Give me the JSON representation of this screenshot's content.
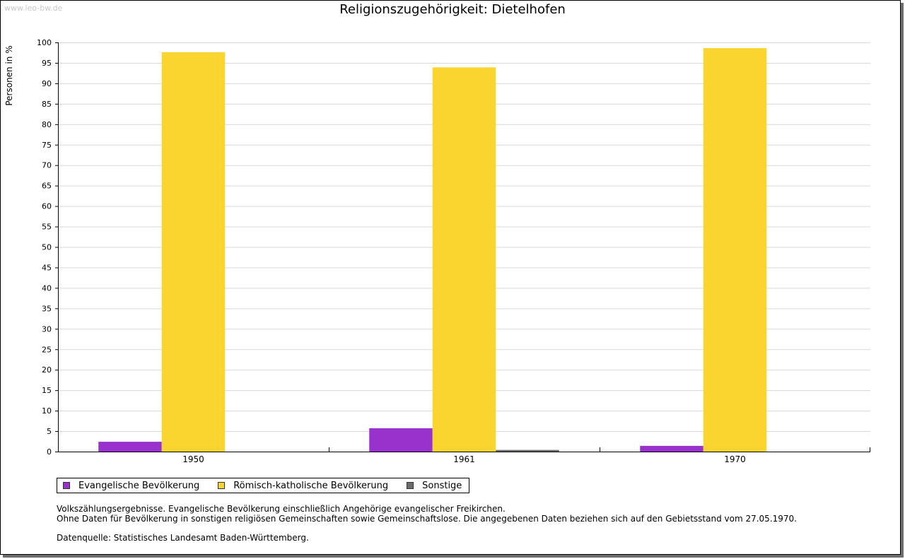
{
  "watermark": "www.leo-bw.de",
  "chart_data": {
    "type": "bar",
    "title": "Religionszugehörigkeit: Dietelhofen",
    "xlabel": "",
    "ylabel": "Personen in %",
    "categories": [
      "1950",
      "1961",
      "1970"
    ],
    "series": [
      {
        "name": "Evangelische Bevölkerung",
        "color": "#9932cc",
        "values": [
          2.4,
          5.7,
          1.4
        ]
      },
      {
        "name": "Römisch-katholische Bevölkerung",
        "color": "#fbd52f",
        "values": [
          97.6,
          93.9,
          98.6
        ]
      },
      {
        "name": "Sonstige",
        "color": "#6b6b6b",
        "values": [
          0,
          0.4,
          0
        ]
      }
    ],
    "ylim": [
      0,
      100
    ],
    "yticks": [
      0,
      5,
      10,
      15,
      20,
      25,
      30,
      35,
      40,
      45,
      50,
      55,
      60,
      65,
      70,
      75,
      80,
      85,
      90,
      95,
      100
    ],
    "grid": true,
    "legend_position": "bottom-left"
  },
  "notes": {
    "line1": "Volkszählungsergebnisse. Evangelische Bevölkerung einschließlich Angehörige evangelischer Freikirchen.",
    "line2": "Ohne Daten für Bevölkerung in sonstigen religiösen Gemeinschaften sowie Gemeinschaftslose. Die angegebenen Daten beziehen sich auf den Gebietsstand vom 27.05.1970.",
    "source": "Datenquelle: Statistisches Landesamt Baden-Württemberg."
  }
}
